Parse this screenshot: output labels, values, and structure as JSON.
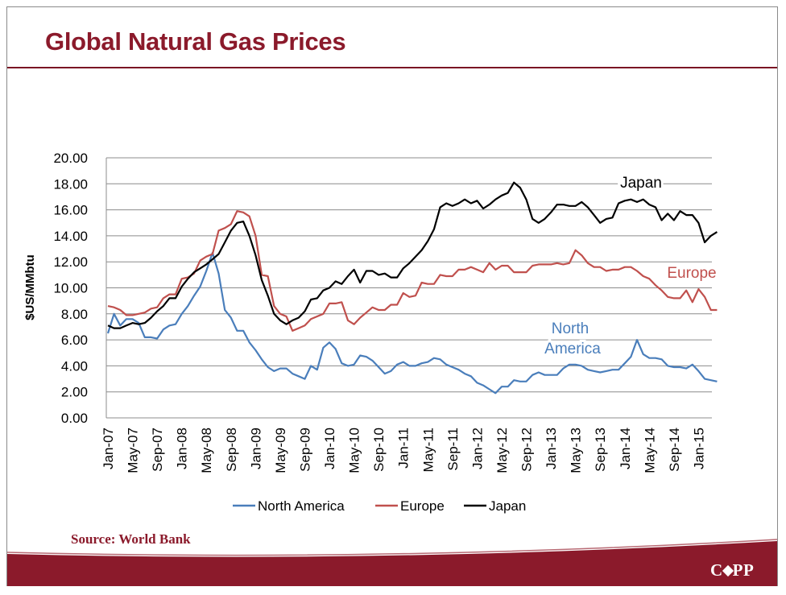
{
  "slide": {
    "title": "Global Natural Gas Prices",
    "source": "Source: World Bank",
    "logo_text": "CAPP",
    "accent_color": "#8b1a2b"
  },
  "chart_data": {
    "type": "line",
    "ylabel": "$US/MMbtu",
    "ylim": [
      0,
      20
    ],
    "yticks": [
      "0.00",
      "2.00",
      "4.00",
      "6.00",
      "8.00",
      "10.00",
      "12.00",
      "14.00",
      "16.00",
      "18.00",
      "20.00"
    ],
    "grid": true,
    "legend_position": "bottom",
    "xtick_labels": [
      "Jan-07",
      "May-07",
      "Sep-07",
      "Jan-08",
      "May-08",
      "Sep-08",
      "Jan-09",
      "May-09",
      "Sep-09",
      "Jan-10",
      "May-10",
      "Sep-10",
      "Jan-11",
      "May-11",
      "Sep-11",
      "Jan-12",
      "May-12",
      "Sep-12",
      "Jan-13",
      "May-13",
      "Sep-13",
      "Jan-14",
      "May-14",
      "Sep-14",
      "Jan-15"
    ],
    "x_start": "Jan-07",
    "x_end": "Mar-15",
    "annotations": [
      {
        "text": "Japan",
        "series": "Japan"
      },
      {
        "text": "Europe",
        "series": "Europe"
      },
      {
        "text": "North America",
        "series": "North America"
      }
    ],
    "series": [
      {
        "name": "North America",
        "color": "#4a7ebb",
        "values": [
          6.5,
          8.0,
          7.1,
          7.6,
          7.6,
          7.3,
          6.2,
          6.2,
          6.1,
          6.8,
          7.1,
          7.2,
          8.0,
          8.6,
          9.4,
          10.1,
          11.3,
          12.7,
          11.1,
          8.3,
          7.7,
          6.7,
          6.7,
          5.8,
          5.2,
          4.5,
          3.9,
          3.6,
          3.8,
          3.8,
          3.4,
          3.2,
          3.0,
          4.0,
          3.7,
          5.4,
          5.8,
          5.3,
          4.2,
          4.0,
          4.1,
          4.8,
          4.7,
          4.4,
          3.9,
          3.4,
          3.6,
          4.1,
          4.3,
          4.0,
          4.0,
          4.2,
          4.3,
          4.6,
          4.5,
          4.1,
          3.9,
          3.7,
          3.4,
          3.2,
          2.7,
          2.5,
          2.2,
          1.9,
          2.4,
          2.4,
          2.9,
          2.8,
          2.8,
          3.3,
          3.5,
          3.3,
          3.3,
          3.3,
          3.8,
          4.1,
          4.1,
          4.0,
          3.7,
          3.6,
          3.5,
          3.6,
          3.7,
          3.7,
          4.2,
          4.7,
          6.0,
          4.9,
          4.6,
          4.6,
          4.5,
          4.0,
          3.9,
          3.9,
          3.8,
          4.1,
          3.6,
          3.0,
          2.9,
          2.8
        ]
      },
      {
        "name": "Europe",
        "color": "#c0504d",
        "values": [
          8.6,
          8.5,
          8.3,
          7.9,
          7.9,
          8.0,
          8.1,
          8.4,
          8.5,
          9.2,
          9.5,
          9.5,
          10.7,
          10.8,
          11.1,
          12.1,
          12.4,
          12.6,
          14.4,
          14.6,
          14.9,
          15.9,
          15.8,
          15.5,
          14.0,
          11.0,
          10.9,
          8.6,
          8.0,
          7.8,
          6.7,
          6.9,
          7.1,
          7.6,
          7.8,
          8.0,
          8.8,
          8.8,
          8.9,
          7.5,
          7.2,
          7.7,
          8.1,
          8.5,
          8.3,
          8.3,
          8.7,
          8.7,
          9.6,
          9.3,
          9.4,
          10.4,
          10.3,
          10.3,
          11.0,
          10.9,
          10.9,
          11.4,
          11.4,
          11.6,
          11.4,
          11.2,
          11.9,
          11.4,
          11.7,
          11.7,
          11.2,
          11.2,
          11.2,
          11.7,
          11.8,
          11.8,
          11.8,
          11.9,
          11.8,
          11.9,
          12.9,
          12.5,
          11.9,
          11.6,
          11.6,
          11.3,
          11.4,
          11.4,
          11.6,
          11.6,
          11.3,
          10.9,
          10.7,
          10.2,
          9.8,
          9.3,
          9.2,
          9.2,
          9.8,
          8.9,
          9.9,
          9.3,
          8.3,
          8.3
        ]
      },
      {
        "name": "Japan",
        "color": "#000000",
        "values": [
          7.1,
          6.9,
          6.9,
          7.1,
          7.3,
          7.2,
          7.3,
          7.7,
          8.2,
          8.6,
          9.2,
          9.2,
          10.1,
          10.7,
          11.2,
          11.5,
          11.8,
          12.2,
          12.6,
          13.5,
          14.4,
          15.0,
          15.1,
          14.0,
          12.5,
          10.6,
          9.4,
          8.0,
          7.5,
          7.2,
          7.5,
          7.7,
          8.2,
          9.1,
          9.2,
          9.8,
          10.0,
          10.5,
          10.3,
          10.9,
          11.4,
          10.4,
          11.3,
          11.3,
          11.0,
          11.1,
          10.8,
          10.8,
          11.5,
          11.9,
          12.4,
          12.9,
          13.6,
          14.5,
          16.2,
          16.5,
          16.3,
          16.5,
          16.8,
          16.5,
          16.7,
          16.1,
          16.4,
          16.8,
          17.1,
          17.3,
          18.1,
          17.7,
          16.8,
          15.3,
          15.0,
          15.3,
          15.8,
          16.4,
          16.4,
          16.3,
          16.3,
          16.6,
          16.2,
          15.6,
          15.0,
          15.3,
          15.4,
          16.5,
          16.7,
          16.8,
          16.6,
          16.8,
          16.4,
          16.2,
          15.2,
          15.7,
          15.2,
          15.9,
          15.6,
          15.6,
          15.0,
          13.5,
          14.0,
          14.3
        ]
      }
    ]
  }
}
